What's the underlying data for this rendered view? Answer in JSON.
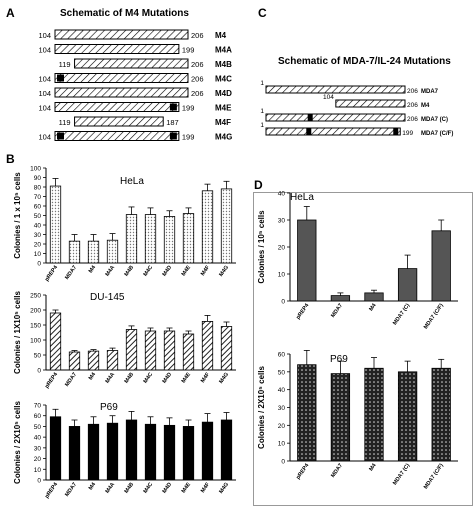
{
  "panels": {
    "a": {
      "letter": "A",
      "title": "Schematic of M4 Mutations",
      "constructs": [
        {
          "left": "104",
          "right": "206",
          "name": "M4",
          "start": 104,
          "end": 206,
          "marks": []
        },
        {
          "left": "104",
          "right": "199",
          "name": "M4A",
          "start": 104,
          "end": 199,
          "marks": []
        },
        {
          "left": "119",
          "right": "206",
          "name": "M4B",
          "start": 119,
          "end": 206,
          "marks": []
        },
        {
          "left": "104",
          "right": "206",
          "name": "M4C",
          "start": 104,
          "end": 206,
          "marks": [
            "left"
          ]
        },
        {
          "left": "104",
          "right": "206",
          "name": "M4D",
          "start": 104,
          "end": 206,
          "marks": []
        },
        {
          "left": "104",
          "right": "199",
          "name": "M4E",
          "start": 104,
          "end": 199,
          "marks": [
            "right"
          ]
        },
        {
          "left": "119",
          "right": "187",
          "name": "M4F",
          "start": 119,
          "end": 187,
          "marks": []
        },
        {
          "left": "104",
          "right": "199",
          "name": "M4G",
          "start": 104,
          "end": 199,
          "marks": [
            "left",
            "right"
          ]
        }
      ]
    },
    "c": {
      "letter": "C",
      "title": "Schematic of MDA-7/IL-24 Mutations",
      "constructs": [
        {
          "left": "1",
          "right": "206",
          "name": "MDA7",
          "start": 1,
          "end": 206,
          "marks": []
        },
        {
          "left": "104",
          "right": "206",
          "name": "M4",
          "start": 104,
          "end": 206,
          "marks": []
        },
        {
          "left": "1",
          "right": "206",
          "name": "MDA7 (C)",
          "start": 1,
          "end": 206,
          "marks": [
            "mid"
          ]
        },
        {
          "left": "1",
          "right": "199",
          "name": "MDA7 (C/F)",
          "start": 1,
          "end": 199,
          "marks": [
            "mid",
            "right"
          ]
        }
      ]
    },
    "b_letter": "B",
    "d_letter": "D"
  },
  "chart_data": [
    {
      "type": "bar",
      "panel": "B",
      "title": "HeLa",
      "ylabel": "Colonies / 1 x 10⁵ cells",
      "ylim": [
        0,
        100
      ],
      "yticks": [
        0,
        10,
        20,
        30,
        40,
        50,
        60,
        70,
        80,
        90,
        100
      ],
      "categories": [
        "pREP4",
        "MDA7",
        "M4",
        "M4A",
        "M4B",
        "M4C",
        "M4D",
        "M4E",
        "M4F",
        "M4G"
      ],
      "values": [
        81,
        23,
        23,
        24,
        51,
        51,
        49,
        52,
        76,
        78
      ],
      "errors": [
        8,
        7,
        7,
        7,
        8,
        7,
        6,
        6,
        7,
        8
      ],
      "fill": "dots"
    },
    {
      "type": "bar",
      "panel": "B",
      "title": "DU-145",
      "ylabel": "Colonies / 1X10⁵ cells",
      "ylim": [
        0,
        250
      ],
      "yticks": [
        0,
        50,
        100,
        150,
        200,
        250
      ],
      "categories": [
        "pREP4",
        "MDA7",
        "M4",
        "M4A",
        "M4B",
        "M4C",
        "M4D",
        "M4E",
        "M4F",
        "M4G"
      ],
      "values": [
        190,
        60,
        63,
        65,
        135,
        130,
        130,
        120,
        162,
        145
      ],
      "errors": [
        10,
        5,
        5,
        8,
        12,
        10,
        10,
        10,
        20,
        15
      ],
      "fill": "hatch"
    },
    {
      "type": "bar",
      "panel": "B",
      "title": "P69",
      "ylabel": "Colonies / 2X10⁵ cells",
      "ylim": [
        0,
        70
      ],
      "yticks": [
        0,
        10,
        20,
        30,
        40,
        50,
        60,
        70
      ],
      "categories": [
        "pREP4",
        "MDA7",
        "M4",
        "M4A",
        "M4B",
        "M4C",
        "M4D",
        "M4E",
        "M4F",
        "M4G"
      ],
      "values": [
        59,
        50,
        52,
        53,
        56,
        52,
        51,
        50,
        54,
        56
      ],
      "errors": [
        7,
        6,
        7,
        7,
        8,
        7,
        7,
        6,
        8,
        7
      ],
      "fill": "solid"
    },
    {
      "type": "bar",
      "panel": "D",
      "title": "HeLa",
      "ylabel": "Colonies / 10⁵ cells",
      "ylim": [
        0,
        40
      ],
      "yticks": [
        0,
        10,
        20,
        30,
        40
      ],
      "categories": [
        "pREP4",
        "MDA7",
        "M4",
        "MDA7 (C)",
        "MDA7 (C/F)"
      ],
      "values": [
        30,
        2,
        3,
        12,
        26
      ],
      "errors": [
        5,
        1,
        1,
        5,
        4
      ],
      "fill": "gray"
    },
    {
      "type": "bar",
      "panel": "D",
      "title": "P69",
      "ylabel": "Colonies / 2X10⁵ cells",
      "ylim": [
        0,
        60
      ],
      "yticks": [
        0,
        10,
        20,
        30,
        40,
        50,
        60
      ],
      "categories": [
        "pREP4",
        "MDA7",
        "M4",
        "MDA7 (C)",
        "MDA7 (C/F)"
      ],
      "values": [
        54,
        49,
        52,
        50,
        52
      ],
      "errors": [
        8,
        7,
        6,
        6,
        5
      ],
      "fill": "dots-dark"
    }
  ]
}
